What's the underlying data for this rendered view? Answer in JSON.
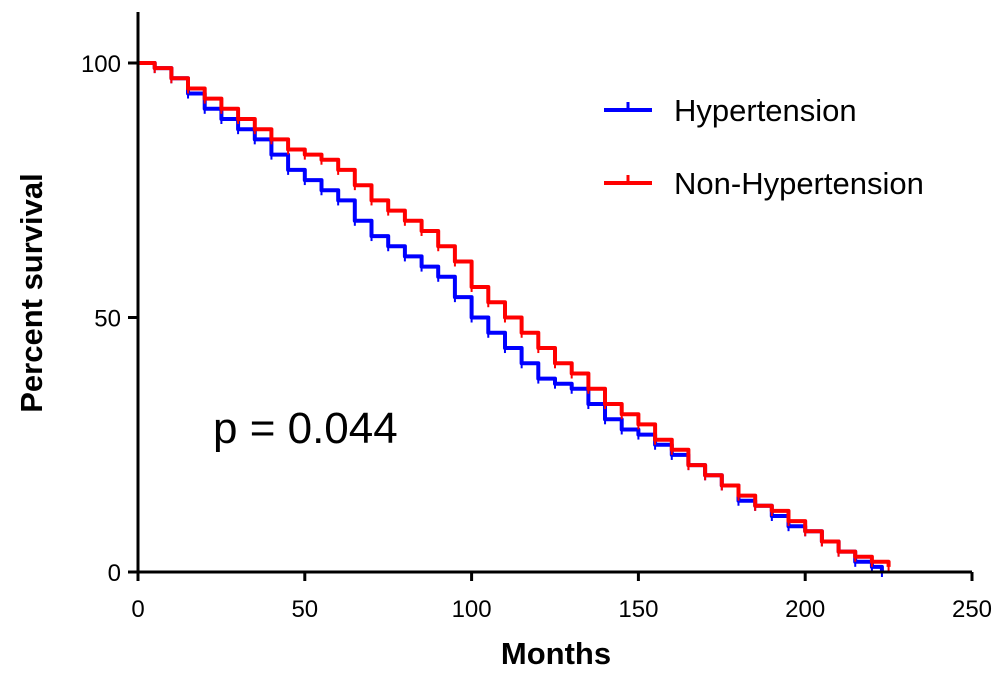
{
  "chart_data": {
    "type": "line",
    "title": "",
    "xlabel": "Months",
    "ylabel": "Percent survival",
    "xlim": [
      0,
      250
    ],
    "ylim": [
      0,
      100
    ],
    "xticks": [
      0,
      50,
      100,
      150,
      200,
      250
    ],
    "yticks": [
      0,
      50,
      100
    ],
    "grid": false,
    "legend_position": "top-right",
    "annotation": "p = 0.044",
    "series": [
      {
        "name": "Hypertension",
        "color": "#0000ff",
        "x": [
          0,
          5,
          10,
          15,
          20,
          25,
          30,
          35,
          40,
          45,
          50,
          55,
          60,
          65,
          70,
          75,
          80,
          85,
          90,
          95,
          100,
          105,
          110,
          115,
          120,
          125,
          130,
          135,
          140,
          145,
          150,
          155,
          160,
          165,
          170,
          175,
          180,
          185,
          190,
          195,
          200,
          205,
          210,
          215,
          220,
          223
        ],
        "y": [
          100,
          99,
          97,
          94,
          91,
          89,
          87,
          85,
          82,
          79,
          77,
          75,
          73,
          69,
          66,
          64,
          62,
          60,
          58,
          54,
          50,
          47,
          44,
          41,
          38,
          37,
          36,
          33,
          30,
          28,
          27,
          25,
          23,
          21,
          19,
          17,
          14,
          13,
          11,
          9,
          8,
          6,
          4,
          2,
          1,
          0
        ]
      },
      {
        "name": "Non-Hypertension",
        "color": "#ff0000",
        "x": [
          0,
          5,
          10,
          15,
          20,
          25,
          30,
          35,
          40,
          45,
          50,
          55,
          60,
          65,
          70,
          75,
          80,
          85,
          90,
          95,
          100,
          105,
          110,
          115,
          120,
          125,
          130,
          135,
          140,
          145,
          150,
          155,
          160,
          165,
          170,
          175,
          180,
          185,
          190,
          195,
          200,
          205,
          210,
          215,
          220,
          225
        ],
        "y": [
          100,
          99,
          97,
          95,
          93,
          91,
          89,
          87,
          85,
          83,
          82,
          81,
          79,
          76,
          73,
          71,
          69,
          67,
          64,
          61,
          56,
          53,
          50,
          47,
          44,
          41,
          39,
          36,
          33,
          31,
          29,
          26,
          24,
          21,
          19,
          17,
          15,
          13,
          12,
          10,
          8,
          6,
          4,
          3,
          2,
          1
        ]
      }
    ]
  }
}
